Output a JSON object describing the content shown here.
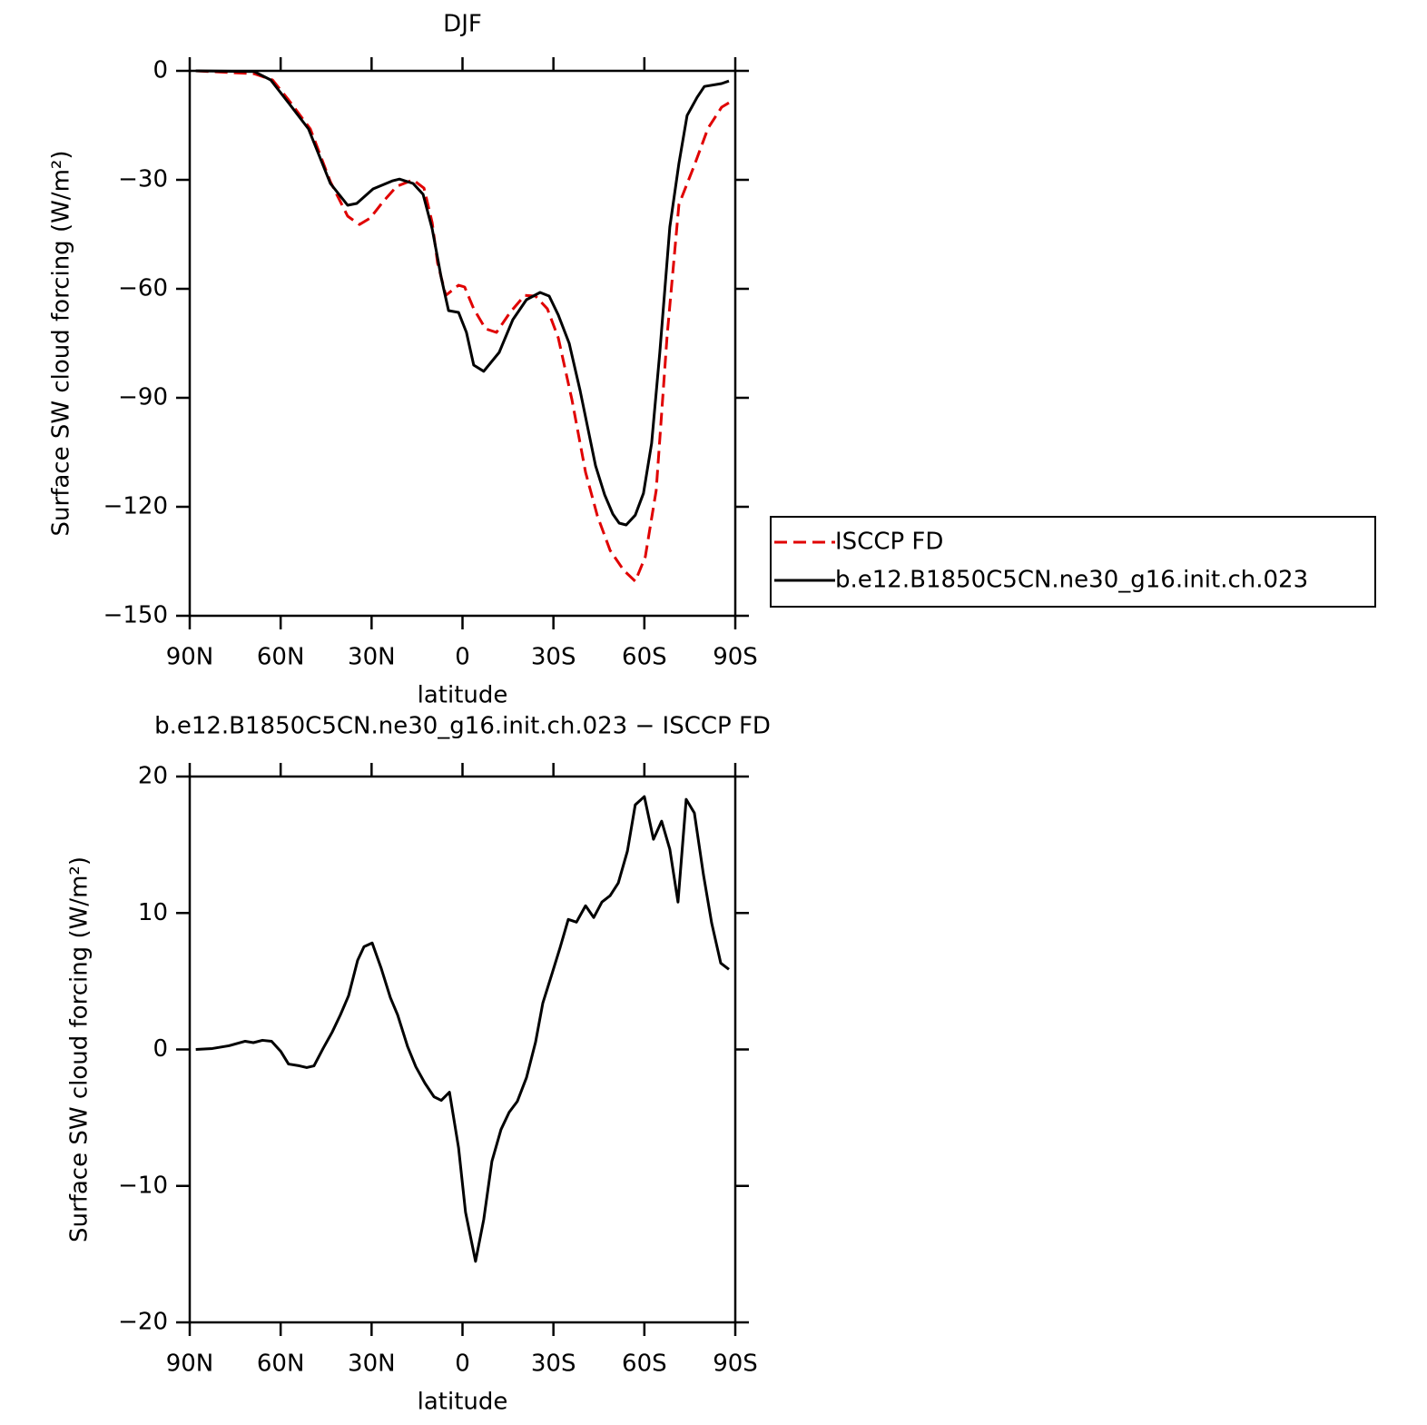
{
  "chart_data": [
    {
      "type": "line",
      "title": "DJF",
      "xlabel": "latitude",
      "ylabel": "Surface SW cloud forcing (W/m²)",
      "xlim": [
        90,
        -90
      ],
      "xticks": [
        {
          "value": 90,
          "label": "90N"
        },
        {
          "value": 60,
          "label": "60N"
        },
        {
          "value": 30,
          "label": "30N"
        },
        0,
        {
          "value": -30,
          "label": "30S"
        },
        {
          "value": -60,
          "label": "60S"
        },
        {
          "value": -90,
          "label": "90S"
        }
      ],
      "ylim": [
        -150,
        0
      ],
      "yticks": [
        {
          "value": -150,
          "label": "−150"
        },
        {
          "value": -120,
          "label": "−120"
        },
        {
          "value": -90,
          "label": "−90"
        },
        {
          "value": -60,
          "label": "−60"
        },
        {
          "value": -30,
          "label": "−30"
        },
        0
      ],
      "legend": "outside-right",
      "series": [
        {
          "name": "ISCCP FD",
          "color": "#e00000",
          "line_style": "dashed",
          "x": [
            88,
            68.7,
            62.7,
            57.4,
            50.2,
            43.6,
            37.9,
            34,
            30.4,
            26.2,
            21.7,
            16.3,
            12.7,
            10,
            8.2,
            5.5,
            1.3,
            -0.7,
            -3.7,
            -7.6,
            -11.2,
            -15.7,
            -20.5,
            -24.1,
            -28,
            -31.6,
            -36.1,
            -40.6,
            -44.5,
            -48.7,
            -53.2,
            -57,
            -60.3,
            -63.9,
            -67.5,
            -71.4,
            -76.5,
            -81,
            -85.5,
            -88.5
          ],
          "values": [
            0,
            -0.8,
            -2.5,
            -8,
            -16,
            -30.5,
            -40,
            -42.3,
            -40.5,
            -36,
            -31.8,
            -30,
            -32.3,
            -41.8,
            -53,
            -61.8,
            -59,
            -59.5,
            -65.5,
            -71,
            -72,
            -66.5,
            -61.8,
            -62,
            -65.5,
            -73.5,
            -90.5,
            -110.5,
            -122.5,
            -132,
            -137.5,
            -140.5,
            -133.8,
            -115.5,
            -73,
            -36.8,
            -26,
            -15.8,
            -10,
            -8.5
          ]
        },
        {
          "name": "b.e12.B1850C5CN.ne30_g16.init.ch.023",
          "color": "#000000",
          "line_style": "solid",
          "x": [
            88,
            68.7,
            63.3,
            57.4,
            50.8,
            43.6,
            37.9,
            34.9,
            29.5,
            23.2,
            20.8,
            16.3,
            13,
            10,
            7,
            4.6,
            1.3,
            -1.3,
            -3.7,
            -7,
            -12.1,
            -16.6,
            -21.1,
            -25.6,
            -28.6,
            -31.6,
            -35.2,
            -38.8,
            -43.9,
            -46.9,
            -49.6,
            -51.7,
            -54,
            -57,
            -59.7,
            -62.4,
            -65.1,
            -68.4,
            -71.4,
            -74.1,
            -77.4,
            -79.8,
            -85.5,
            -87.9
          ],
          "values": [
            0,
            -0.2,
            -2.5,
            -8.8,
            -16,
            -31,
            -37,
            -36.5,
            -32.5,
            -30.3,
            -29.8,
            -31,
            -34,
            -43.5,
            -57,
            -66,
            -66.5,
            -72,
            -81,
            -82.7,
            -77.5,
            -68.5,
            -63,
            -61,
            -62,
            -67.2,
            -75,
            -88,
            -108.7,
            -116.7,
            -122,
            -124.5,
            -125,
            -122.3,
            -116.3,
            -102.5,
            -77.5,
            -43,
            -25.5,
            -12.3,
            -7.3,
            -4.3,
            -3.5,
            -2.8
          ]
        }
      ]
    },
    {
      "type": "line",
      "title": "b.e12.B1850C5CN.ne30_g16.init.ch.023 − ISCCP FD",
      "xlabel": "latitude",
      "ylabel": "Surface SW cloud forcing (W/m²)",
      "xlim": [
        90,
        -90
      ],
      "xticks": [
        {
          "value": 90,
          "label": "90N"
        },
        {
          "value": 60,
          "label": "60N"
        },
        {
          "value": 30,
          "label": "30N"
        },
        0,
        {
          "value": -30,
          "label": "30S"
        },
        {
          "value": -60,
          "label": "60S"
        },
        {
          "value": -90,
          "label": "90S"
        }
      ],
      "ylim": [
        -20,
        20
      ],
      "yticks": [
        {
          "value": -20,
          "label": "−20"
        },
        {
          "value": -10,
          "label": "−10"
        },
        0,
        10,
        20
      ],
      "series": [
        {
          "color": "#000000",
          "line_style": "solid",
          "x": [
            88,
            82.5,
            77.1,
            71.7,
            69,
            66,
            63,
            60,
            57.4,
            53.8,
            51.4,
            49,
            46,
            43,
            40.3,
            37.6,
            34.6,
            32.5,
            29.8,
            26.8,
            23.8,
            21.4,
            18.1,
            15.4,
            12.4,
            9.4,
            7,
            4.3,
            1.3,
            -1,
            -4.3,
            -7,
            -9.7,
            -12.7,
            -15.4,
            -18.1,
            -21.1,
            -24.1,
            -26.5,
            -29.5,
            -32.2,
            -34.9,
            -37.6,
            -40.6,
            -43.3,
            -46,
            -48.7,
            -51.4,
            -54.4,
            -57,
            -60,
            -63,
            -65.7,
            -68.4,
            -71.1,
            -73.8,
            -76.5,
            -79.5,
            -82.2,
            -85.2,
            -87.9
          ],
          "values": [
            0,
            0.07,
            0.27,
            0.6,
            0.5,
            0.67,
            0.6,
            -0.13,
            -1.07,
            -1.2,
            -1.33,
            -1.2,
            0.07,
            1.27,
            2.53,
            3.93,
            6.53,
            7.53,
            7.8,
            5.93,
            3.8,
            2.53,
            0.2,
            -1.27,
            -2.47,
            -3.47,
            -3.73,
            -3.13,
            -7.2,
            -11.93,
            -15.53,
            -12.47,
            -8.2,
            -5.87,
            -4.6,
            -3.8,
            -2.07,
            0.53,
            3.4,
            5.53,
            7.47,
            9.53,
            9.33,
            10.53,
            9.67,
            10.8,
            11.27,
            12.2,
            14.53,
            17.93,
            18.53,
            15.4,
            16.73,
            14.67,
            10.8,
            18.33,
            17.33,
            12.8,
            9.27,
            6.33,
            5.87
          ]
        }
      ]
    }
  ]
}
